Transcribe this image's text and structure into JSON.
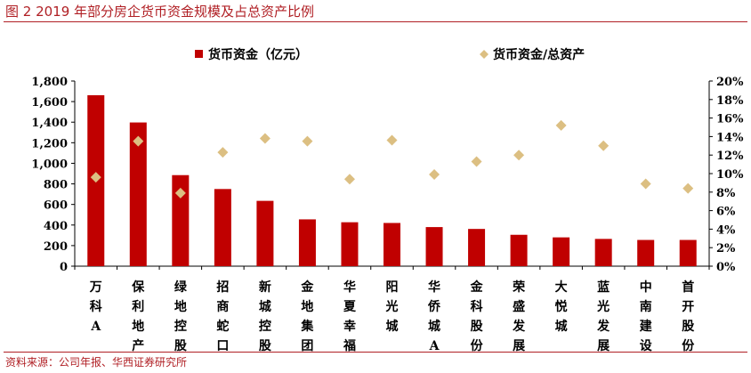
{
  "header": {
    "title": "图 2 2019 年部分房企货币资金规模及占总资产比例"
  },
  "footer": {
    "source": "资料来源：公司年报、华西证券研究所"
  },
  "colors": {
    "bar": "#c00000",
    "marker": "#dcbf82",
    "accent": "#b01f24"
  },
  "chart_data": {
    "type": "bar",
    "categories": [
      "万科A",
      "保利地产",
      "绿地控股",
      "招商蛇口",
      "新城控股",
      "金地集团",
      "华夏幸福",
      "阳光城",
      "华侨城A",
      "金科股份",
      "荣盛发展",
      "大悦城",
      "蓝光发展",
      "中南建设",
      "首开股份"
    ],
    "series": [
      {
        "name": "货币资金（亿元）",
        "type": "bar",
        "axis": "left",
        "values": [
          1662,
          1397,
          885,
          750,
          635,
          455,
          427,
          420,
          380,
          362,
          305,
          280,
          265,
          255,
          255
        ]
      },
      {
        "name": "货币资金/总资产",
        "type": "scatter",
        "axis": "right",
        "values": [
          9.6,
          13.5,
          7.9,
          12.3,
          13.8,
          13.5,
          9.4,
          13.6,
          9.9,
          11.3,
          12.0,
          15.2,
          13.0,
          8.9,
          8.4
        ]
      }
    ],
    "y_left": {
      "ticks": [
        "0",
        "200",
        "400",
        "600",
        "800",
        "1,000",
        "1,200",
        "1,400",
        "1,600",
        "1,800"
      ],
      "ylim": [
        0,
        1800
      ]
    },
    "y_right": {
      "ticks": [
        "0%",
        "2%",
        "4%",
        "6%",
        "8%",
        "10%",
        "12%",
        "14%",
        "16%",
        "18%",
        "20%"
      ],
      "ylim": [
        0,
        20
      ]
    },
    "legend": "top"
  }
}
